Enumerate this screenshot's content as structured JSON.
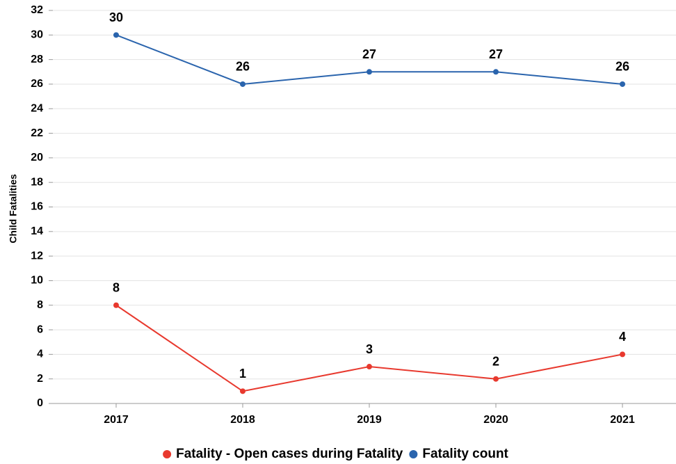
{
  "chart_data": {
    "type": "line",
    "y_label": "Child Fatalities",
    "categories": [
      "2017",
      "2018",
      "2019",
      "2020",
      "2021"
    ],
    "series": [
      {
        "name": "Fatality - Open cases during Fatality",
        "color": "#e8392e",
        "values": [
          8,
          1,
          3,
          2,
          4
        ]
      },
      {
        "name": "Fatality count",
        "color": "#2a64ad",
        "values": [
          30,
          26,
          27,
          27,
          26
        ]
      }
    ],
    "ylim": [
      0,
      32
    ],
    "yticks": [
      0,
      2,
      4,
      6,
      8,
      10,
      12,
      14,
      16,
      18,
      20,
      22,
      24,
      26,
      28,
      30,
      32
    ],
    "grid": true,
    "legend": "bottom"
  }
}
